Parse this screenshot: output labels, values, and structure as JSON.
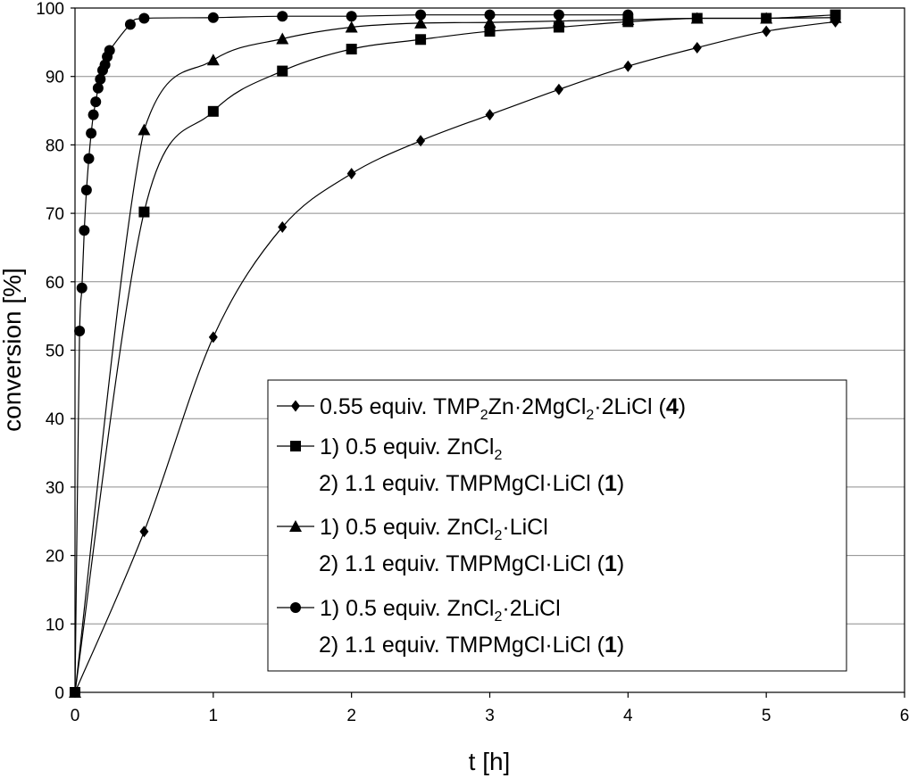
{
  "chart_data": {
    "type": "line",
    "xlabel": "t [h]",
    "ylabel": "conversion [%]",
    "xlim": [
      0,
      6
    ],
    "ylim": [
      0,
      100
    ],
    "x_ticks": [
      "0",
      "1",
      "2",
      "3",
      "4",
      "5",
      "6"
    ],
    "y_ticks": [
      "0",
      "10",
      "20",
      "30",
      "40",
      "50",
      "60",
      "70",
      "80",
      "90",
      "100"
    ],
    "grid": "horizontal",
    "legend_position": "bottom-right",
    "series": [
      {
        "marker": "diamond",
        "legend_lines": [
          [
            {
              "t": "0.55 equiv. TMP"
            },
            {
              "t": "2",
              "sub": true
            },
            {
              "t": "Zn·2MgCl"
            },
            {
              "t": "2",
              "sub": true
            },
            {
              "t": "·2LiCl ("
            },
            {
              "t": "4",
              "bold": true
            },
            {
              "t": ")"
            }
          ]
        ],
        "x": [
          0,
          0.5,
          1,
          1.5,
          2,
          2.5,
          3,
          3.5,
          4,
          4.5,
          5,
          5.5
        ],
        "y": [
          0,
          23.5,
          51.9,
          68,
          75.8,
          80.6,
          84.4,
          88.1,
          91.5,
          94.2,
          96.6,
          98
        ]
      },
      {
        "marker": "square",
        "legend_lines": [
          [
            {
              "t": "1) 0.5 equiv. ZnCl"
            },
            {
              "t": "2",
              "sub": true
            }
          ],
          [
            {
              "t": "2) 1.1 equiv. TMPMgCl·LiCl ("
            },
            {
              "t": "1",
              "bold": true
            },
            {
              "t": ")"
            }
          ]
        ],
        "x": [
          0,
          0.5,
          1,
          1.5,
          2,
          2.5,
          3,
          3.5,
          4,
          4.5,
          5,
          5.5
        ],
        "y": [
          0,
          70.2,
          84.9,
          90.8,
          94,
          95.4,
          96.6,
          97.2,
          98,
          98.5,
          98.5,
          99
        ]
      },
      {
        "marker": "triangle",
        "legend_lines": [
          [
            {
              "t": "1) 0.5 equiv. ZnCl"
            },
            {
              "t": "2",
              "sub": true
            },
            {
              "t": "·LiCl"
            }
          ],
          [
            {
              "t": "2) 1.1 equiv. TMPMgCl·LiCl ("
            },
            {
              "t": "1",
              "bold": true
            },
            {
              "t": ")"
            }
          ]
        ],
        "x": [
          0,
          0.5,
          1,
          1.5,
          2,
          2.5,
          3,
          3.5,
          4,
          4.5,
          5,
          5.5
        ],
        "y": [
          0,
          82.2,
          92.4,
          95.5,
          97.2,
          97.8,
          97.9,
          98.1,
          98.3,
          98.5,
          98.5,
          98.6
        ]
      },
      {
        "marker": "circle",
        "legend_lines": [
          [
            {
              "t": "1) 0.5 equiv. ZnCl"
            },
            {
              "t": "2",
              "sub": true
            },
            {
              "t": "·2LiCl"
            }
          ],
          [
            {
              "t": "2) 1.1 equiv. TMPMgCl·LiCl ("
            },
            {
              "t": "1",
              "bold": true
            },
            {
              "t": ")"
            }
          ]
        ],
        "x": [
          0,
          0.033,
          0.05,
          0.067,
          0.083,
          0.1,
          0.117,
          0.133,
          0.15,
          0.167,
          0.183,
          0.2,
          0.217,
          0.233,
          0.25,
          0.4,
          0.5,
          1,
          1.5,
          2,
          2.5,
          3,
          3.5,
          4
        ],
        "y": [
          0,
          52.8,
          59.1,
          67.5,
          73.4,
          78,
          81.7,
          84.4,
          86.3,
          88.3,
          89.6,
          90.9,
          91.7,
          92.9,
          93.8,
          97.6,
          98.5,
          98.6,
          98.8,
          98.8,
          99,
          99,
          99,
          99
        ]
      }
    ]
  }
}
